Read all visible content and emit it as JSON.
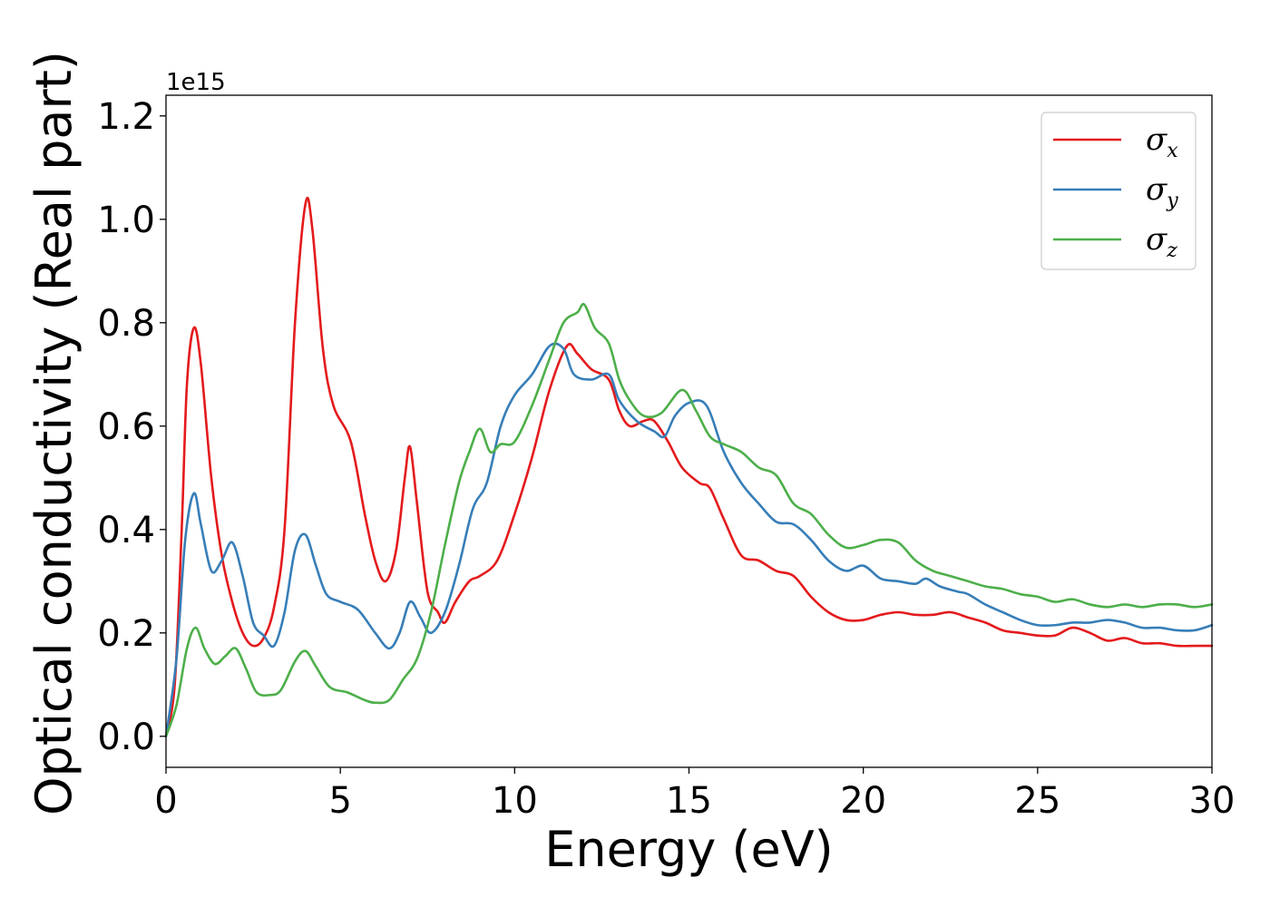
{
  "chart_data": {
    "type": "line",
    "xlabel": "Energy (eV)",
    "ylabel": "Optical conductivity (Real part)",
    "y_scale_offset_label": "1e15",
    "y_multiplier": 1000000000000000.0,
    "xlim": [
      0,
      30
    ],
    "ylim": [
      -0.06,
      1.24
    ],
    "x_ticks": [
      0,
      5,
      10,
      15,
      20,
      25,
      30
    ],
    "x_tick_labels": [
      "0",
      "5",
      "10",
      "15",
      "20",
      "25",
      "30"
    ],
    "y_ticks": [
      0.0,
      0.2,
      0.4,
      0.6,
      0.8,
      1.0,
      1.2
    ],
    "y_tick_labels": [
      "0.0",
      "0.2",
      "0.4",
      "0.6",
      "0.8",
      "1.0",
      "1.2"
    ],
    "grid": false,
    "legend_position": "top-right",
    "series": [
      {
        "name": "σx",
        "legend_symbol": "σ",
        "legend_subscript": "x",
        "color": "#e41a1c",
        "points": [
          [
            0,
            0.0
          ],
          [
            0.25,
            0.1
          ],
          [
            0.45,
            0.4
          ],
          [
            0.6,
            0.68
          ],
          [
            0.8,
            0.79
          ],
          [
            1.0,
            0.72
          ],
          [
            1.3,
            0.5
          ],
          [
            1.6,
            0.35
          ],
          [
            1.9,
            0.26
          ],
          [
            2.2,
            0.2
          ],
          [
            2.5,
            0.175
          ],
          [
            2.8,
            0.19
          ],
          [
            3.1,
            0.25
          ],
          [
            3.4,
            0.4
          ],
          [
            3.7,
            0.8
          ],
          [
            4.0,
            1.03
          ],
          [
            4.2,
            0.98
          ],
          [
            4.5,
            0.75
          ],
          [
            4.8,
            0.64
          ],
          [
            5.3,
            0.57
          ],
          [
            5.7,
            0.43
          ],
          [
            6.0,
            0.34
          ],
          [
            6.3,
            0.3
          ],
          [
            6.6,
            0.36
          ],
          [
            6.85,
            0.5
          ],
          [
            7.0,
            0.56
          ],
          [
            7.2,
            0.45
          ],
          [
            7.5,
            0.28
          ],
          [
            7.8,
            0.24
          ],
          [
            8.0,
            0.22
          ],
          [
            8.3,
            0.26
          ],
          [
            8.7,
            0.3
          ],
          [
            9.0,
            0.31
          ],
          [
            9.5,
            0.34
          ],
          [
            10.0,
            0.43
          ],
          [
            10.5,
            0.54
          ],
          [
            11.0,
            0.67
          ],
          [
            11.5,
            0.755
          ],
          [
            11.8,
            0.74
          ],
          [
            12.2,
            0.71
          ],
          [
            12.7,
            0.69
          ],
          [
            13.0,
            0.63
          ],
          [
            13.3,
            0.6
          ],
          [
            13.7,
            0.61
          ],
          [
            14.0,
            0.61
          ],
          [
            14.4,
            0.57
          ],
          [
            14.8,
            0.52
          ],
          [
            15.3,
            0.49
          ],
          [
            15.6,
            0.48
          ],
          [
            16.0,
            0.42
          ],
          [
            16.5,
            0.35
          ],
          [
            17.0,
            0.34
          ],
          [
            17.5,
            0.32
          ],
          [
            18.0,
            0.31
          ],
          [
            18.5,
            0.27
          ],
          [
            19.0,
            0.24
          ],
          [
            19.5,
            0.225
          ],
          [
            20.0,
            0.225
          ],
          [
            20.5,
            0.235
          ],
          [
            21.0,
            0.24
          ],
          [
            21.5,
            0.235
          ],
          [
            22.0,
            0.235
          ],
          [
            22.5,
            0.24
          ],
          [
            23.0,
            0.23
          ],
          [
            23.5,
            0.22
          ],
          [
            24.0,
            0.205
          ],
          [
            24.5,
            0.2
          ],
          [
            25.0,
            0.195
          ],
          [
            25.5,
            0.195
          ],
          [
            26.0,
            0.21
          ],
          [
            26.5,
            0.2
          ],
          [
            27.0,
            0.185
          ],
          [
            27.5,
            0.19
          ],
          [
            28.0,
            0.18
          ],
          [
            28.5,
            0.18
          ],
          [
            29.0,
            0.175
          ],
          [
            29.5,
            0.175
          ],
          [
            30.0,
            0.175
          ]
        ]
      },
      {
        "name": "σy",
        "legend_symbol": "σ",
        "legend_subscript": "y",
        "color": "#377eb8",
        "points": [
          [
            0,
            0.0
          ],
          [
            0.3,
            0.15
          ],
          [
            0.55,
            0.38
          ],
          [
            0.8,
            0.47
          ],
          [
            1.0,
            0.41
          ],
          [
            1.3,
            0.32
          ],
          [
            1.6,
            0.34
          ],
          [
            1.9,
            0.375
          ],
          [
            2.2,
            0.31
          ],
          [
            2.5,
            0.22
          ],
          [
            2.8,
            0.195
          ],
          [
            3.1,
            0.175
          ],
          [
            3.4,
            0.24
          ],
          [
            3.7,
            0.36
          ],
          [
            4.0,
            0.39
          ],
          [
            4.3,
            0.33
          ],
          [
            4.6,
            0.275
          ],
          [
            5.0,
            0.26
          ],
          [
            5.5,
            0.245
          ],
          [
            6.0,
            0.2
          ],
          [
            6.4,
            0.17
          ],
          [
            6.7,
            0.2
          ],
          [
            7.0,
            0.26
          ],
          [
            7.3,
            0.23
          ],
          [
            7.6,
            0.2
          ],
          [
            8.0,
            0.24
          ],
          [
            8.4,
            0.33
          ],
          [
            8.8,
            0.44
          ],
          [
            9.2,
            0.49
          ],
          [
            9.6,
            0.6
          ],
          [
            10.0,
            0.66
          ],
          [
            10.5,
            0.7
          ],
          [
            11.0,
            0.755
          ],
          [
            11.4,
            0.75
          ],
          [
            11.7,
            0.7
          ],
          [
            12.2,
            0.69
          ],
          [
            12.7,
            0.7
          ],
          [
            13.0,
            0.65
          ],
          [
            13.5,
            0.61
          ],
          [
            14.0,
            0.59
          ],
          [
            14.3,
            0.58
          ],
          [
            14.6,
            0.62
          ],
          [
            15.0,
            0.645
          ],
          [
            15.5,
            0.64
          ],
          [
            16.0,
            0.55
          ],
          [
            16.5,
            0.49
          ],
          [
            17.0,
            0.45
          ],
          [
            17.5,
            0.415
          ],
          [
            18.0,
            0.41
          ],
          [
            18.5,
            0.38
          ],
          [
            19.0,
            0.34
          ],
          [
            19.5,
            0.32
          ],
          [
            20.0,
            0.33
          ],
          [
            20.5,
            0.305
          ],
          [
            21.0,
            0.3
          ],
          [
            21.5,
            0.295
          ],
          [
            21.8,
            0.305
          ],
          [
            22.2,
            0.29
          ],
          [
            22.7,
            0.28
          ],
          [
            23.0,
            0.275
          ],
          [
            23.5,
            0.255
          ],
          [
            24.0,
            0.24
          ],
          [
            24.5,
            0.225
          ],
          [
            25.0,
            0.215
          ],
          [
            25.5,
            0.215
          ],
          [
            26.0,
            0.22
          ],
          [
            26.5,
            0.22
          ],
          [
            27.0,
            0.225
          ],
          [
            27.5,
            0.22
          ],
          [
            28.0,
            0.21
          ],
          [
            28.5,
            0.21
          ],
          [
            29.0,
            0.205
          ],
          [
            29.5,
            0.205
          ],
          [
            30.0,
            0.215
          ]
        ]
      },
      {
        "name": "σz",
        "legend_symbol": "σ",
        "legend_subscript": "z",
        "color": "#4daf4a",
        "points": [
          [
            0,
            0.0
          ],
          [
            0.3,
            0.06
          ],
          [
            0.6,
            0.17
          ],
          [
            0.85,
            0.21
          ],
          [
            1.1,
            0.17
          ],
          [
            1.4,
            0.14
          ],
          [
            1.7,
            0.155
          ],
          [
            2.0,
            0.17
          ],
          [
            2.3,
            0.13
          ],
          [
            2.6,
            0.085
          ],
          [
            3.0,
            0.08
          ],
          [
            3.3,
            0.09
          ],
          [
            3.7,
            0.145
          ],
          [
            4.0,
            0.165
          ],
          [
            4.3,
            0.135
          ],
          [
            4.7,
            0.095
          ],
          [
            5.2,
            0.085
          ],
          [
            5.7,
            0.07
          ],
          [
            6.0,
            0.065
          ],
          [
            6.4,
            0.07
          ],
          [
            6.8,
            0.11
          ],
          [
            7.2,
            0.15
          ],
          [
            7.6,
            0.24
          ],
          [
            8.0,
            0.37
          ],
          [
            8.4,
            0.49
          ],
          [
            8.7,
            0.55
          ],
          [
            9.0,
            0.595
          ],
          [
            9.3,
            0.55
          ],
          [
            9.6,
            0.565
          ],
          [
            10.0,
            0.57
          ],
          [
            10.5,
            0.64
          ],
          [
            11.0,
            0.73
          ],
          [
            11.4,
            0.8
          ],
          [
            11.8,
            0.82
          ],
          [
            12.0,
            0.835
          ],
          [
            12.3,
            0.79
          ],
          [
            12.7,
            0.76
          ],
          [
            13.0,
            0.69
          ],
          [
            13.3,
            0.65
          ],
          [
            13.7,
            0.62
          ],
          [
            14.2,
            0.625
          ],
          [
            14.8,
            0.67
          ],
          [
            15.2,
            0.63
          ],
          [
            15.6,
            0.58
          ],
          [
            16.0,
            0.565
          ],
          [
            16.5,
            0.55
          ],
          [
            17.0,
            0.52
          ],
          [
            17.5,
            0.505
          ],
          [
            18.0,
            0.45
          ],
          [
            18.5,
            0.43
          ],
          [
            19.0,
            0.39
          ],
          [
            19.5,
            0.365
          ],
          [
            20.0,
            0.37
          ],
          [
            20.5,
            0.38
          ],
          [
            21.0,
            0.375
          ],
          [
            21.5,
            0.34
          ],
          [
            22.0,
            0.32
          ],
          [
            22.5,
            0.31
          ],
          [
            23.0,
            0.3
          ],
          [
            23.5,
            0.29
          ],
          [
            24.0,
            0.285
          ],
          [
            24.5,
            0.275
          ],
          [
            25.0,
            0.27
          ],
          [
            25.5,
            0.26
          ],
          [
            26.0,
            0.265
          ],
          [
            26.5,
            0.255
          ],
          [
            27.0,
            0.25
          ],
          [
            27.5,
            0.255
          ],
          [
            28.0,
            0.25
          ],
          [
            28.5,
            0.255
          ],
          [
            29.0,
            0.255
          ],
          [
            29.5,
            0.25
          ],
          [
            30.0,
            0.255
          ]
        ]
      }
    ]
  }
}
